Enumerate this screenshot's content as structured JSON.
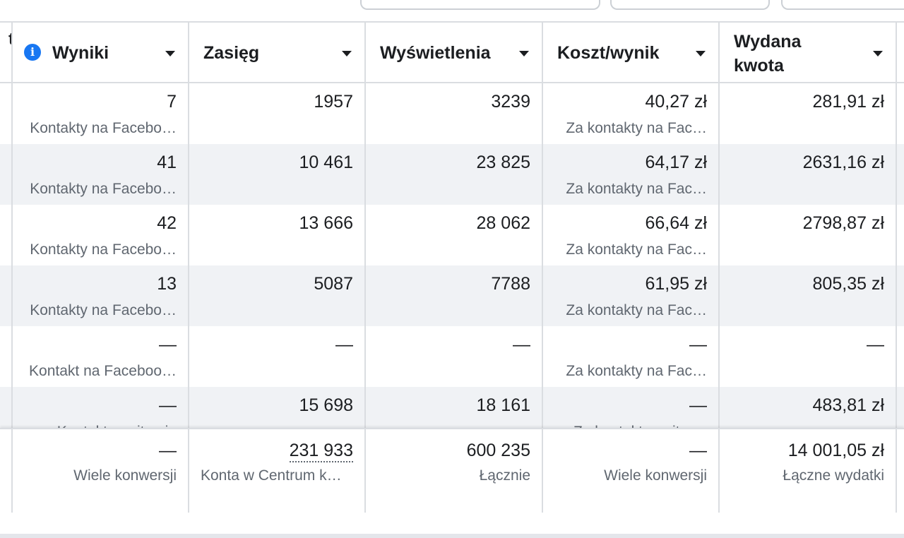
{
  "partial_header_fragment": "t",
  "columns": [
    {
      "label": "Wyniki",
      "has_info_icon": true
    },
    {
      "label": "Zasięg"
    },
    {
      "label": "Wyświetlenia"
    },
    {
      "label": "Koszt/wynik"
    },
    {
      "label": "Wydana kwota",
      "line1": "Wydana",
      "line2": "kwota"
    }
  ],
  "rows": [
    {
      "wyniki": "7",
      "wyniki_sub": "Kontakty na Facebo…",
      "zasieg": "1957",
      "wyswietlenia": "3239",
      "koszt": "40,27 zł",
      "koszt_sub": "Za kontakty na Fac…",
      "wydana": "281,91 zł"
    },
    {
      "wyniki": "41",
      "wyniki_sub": "Kontakty na Facebo…",
      "zasieg": "10 461",
      "wyswietlenia": "23 825",
      "koszt": "64,17 zł",
      "koszt_sub": "Za kontakty na Fac…",
      "wydana": "2631,16 zł"
    },
    {
      "wyniki": "42",
      "wyniki_sub": "Kontakty na Facebo…",
      "zasieg": "13 666",
      "wyswietlenia": "28 062",
      "koszt": "66,64 zł",
      "koszt_sub": "Za kontakty na Fac…",
      "wydana": "2798,87 zł"
    },
    {
      "wyniki": "13",
      "wyniki_sub": "Kontakty na Facebo…",
      "zasieg": "5087",
      "wyswietlenia": "7788",
      "koszt": "61,95 zł",
      "koszt_sub": "Za kontakty na Fac…",
      "wydana": "805,35 zł"
    },
    {
      "wyniki": "—",
      "wyniki_sub": "Kontakt na Faceboo…",
      "zasieg": "—",
      "wyswietlenia": "—",
      "koszt": "—",
      "koszt_sub": "Za kontakty na Fac…",
      "wydana": "—"
    },
    {
      "wyniki": "—",
      "wyniki_sub": "Kontakt w witrynie",
      "zasieg": "15 698",
      "wyswietlenia": "18 161",
      "koszt": "—",
      "koszt_sub": "Za kontakt w witry…",
      "wydana": "483,81 zł"
    }
  ],
  "totals": {
    "wyniki": "—",
    "wyniki_sub": "Wiele konwersji",
    "zasieg": "231 933",
    "zasieg_sub": "Konta w Centrum k…",
    "wyswietlenia": "600 235",
    "wyswietlenia_sub": "Łącznie",
    "koszt": "—",
    "koszt_sub": "Wiele konwersji",
    "wydana": "14 001,05 zł",
    "wydana_sub": "Łączne wydatki"
  }
}
